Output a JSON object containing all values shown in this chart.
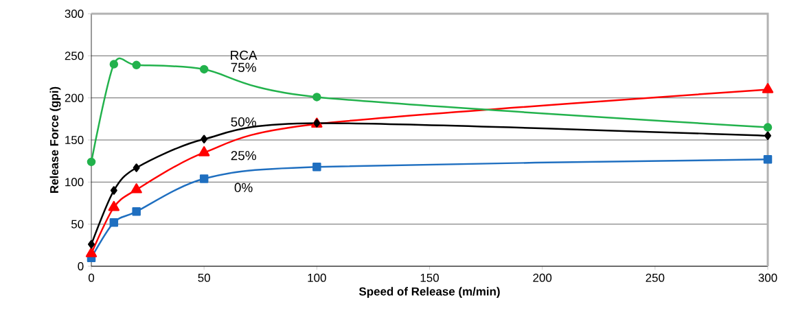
{
  "chart_data": {
    "type": "line",
    "xlabel": "Speed of Release  (m/min)",
    "ylabel": "Release Force (gpi)",
    "annotations": [
      "RCA"
    ],
    "xlim": [
      0,
      300
    ],
    "xticks": [
      0,
      50,
      100,
      150,
      200,
      250,
      300
    ],
    "ylim": [
      0,
      300
    ],
    "yticks": [
      0,
      50,
      100,
      150,
      200,
      250,
      300
    ],
    "grid": "y",
    "series": [
      {
        "name": "0%",
        "color": "#1f6fc0",
        "marker": "square",
        "x": [
          0,
          10,
          20,
          50,
          100,
          300
        ],
        "values": [
          10,
          52,
          65,
          104,
          118,
          127
        ]
      },
      {
        "name": "25%",
        "color": "#ff0000",
        "marker": "triangle",
        "x": [
          0,
          10,
          20,
          50,
          100,
          300
        ],
        "values": [
          15,
          70,
          91,
          135,
          169,
          210
        ]
      },
      {
        "name": "50%",
        "color": "#000000",
        "marker": "diamond",
        "x": [
          0,
          10,
          20,
          50,
          100,
          300
        ],
        "values": [
          26,
          90,
          117,
          151,
          170,
          155
        ]
      },
      {
        "name": "75%",
        "color": "#22b24c",
        "marker": "circle",
        "x": [
          0,
          10,
          20,
          50,
          100,
          300
        ],
        "values": [
          124,
          240,
          239,
          234,
          201,
          165
        ]
      }
    ]
  }
}
